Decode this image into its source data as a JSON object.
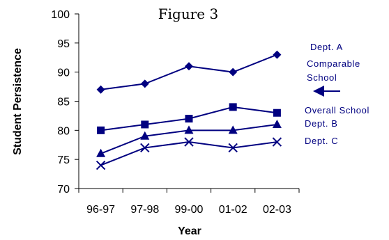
{
  "chart_data": {
    "type": "line",
    "title": "Figure 3",
    "xlabel": "Year",
    "ylabel": "Student Persistence",
    "categories": [
      "96-97",
      "97-98",
      "99-00",
      "01-02",
      "02-03"
    ],
    "ylim": [
      70,
      100
    ],
    "yticks": [
      70,
      75,
      80,
      85,
      90,
      95,
      100
    ],
    "grid": false,
    "colors": {
      "series": "#000080",
      "axis": "#000000",
      "annotation": "#000080"
    },
    "series": [
      {
        "name": "Dept. A",
        "marker": "diamond",
        "values": [
          87,
          88,
          91,
          90,
          93
        ]
      },
      {
        "name": "Overall School",
        "marker": "square",
        "values": [
          80,
          81,
          82,
          84,
          83
        ]
      },
      {
        "name": "Dept. B",
        "marker": "triangle",
        "values": [
          76,
          79,
          80,
          80,
          81
        ]
      },
      {
        "name": "Dept. C",
        "marker": "x",
        "values": [
          74,
          77,
          78,
          77,
          78
        ]
      }
    ],
    "annotations": [
      {
        "text": "Comparable",
        "line2": "School",
        "pointer": "arrow-left"
      }
    ]
  }
}
